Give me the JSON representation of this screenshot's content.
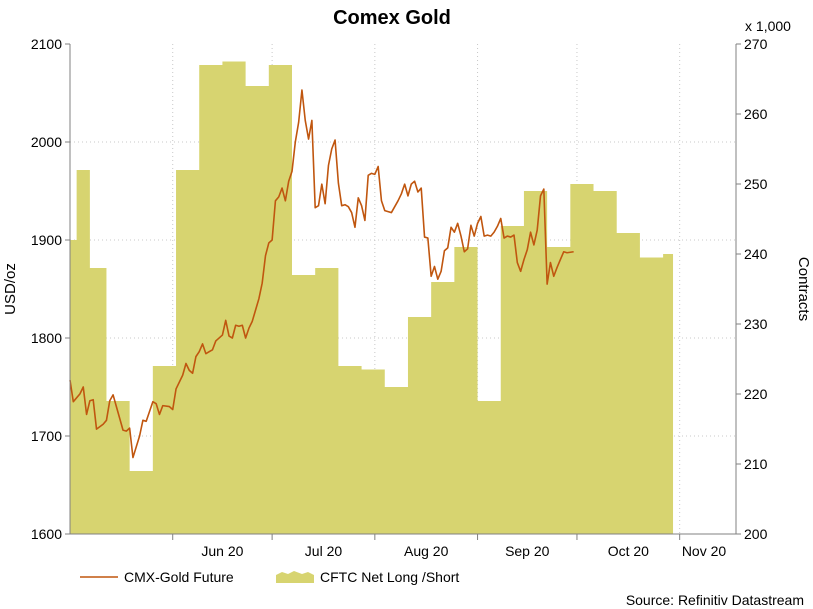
{
  "chart_data": {
    "type": "area",
    "title": "Comex Gold",
    "left_axis": {
      "label": "USD/oz",
      "ylim": [
        1600,
        2100
      ],
      "ticks": [
        "1600",
        "1700",
        "1800",
        "1900",
        "2000",
        "2100"
      ]
    },
    "right_axis": {
      "label": "Contracts",
      "multiplier": "x 1,000",
      "ylim": [
        200,
        270
      ],
      "ticks": [
        "200",
        "210",
        "220",
        "230",
        "240",
        "250",
        "260",
        "270"
      ]
    },
    "x_axis": {
      "range": [
        "2020-05-01",
        "2020-11-18"
      ],
      "ticks": [
        {
          "date": "2020-06-01",
          "label": "Jun 20"
        },
        {
          "date": "2020-07-01",
          "label": "Jul 20"
        },
        {
          "date": "2020-08-01",
          "label": "Aug 20"
        },
        {
          "date": "2020-09-01",
          "label": "Sep 20"
        },
        {
          "date": "2020-10-01",
          "label": "Oct 20"
        },
        {
          "date": "2020-11-01",
          "label": "Nov 20"
        }
      ]
    },
    "grid": true,
    "legend_position": "bottom",
    "source": "Source: Refinitiv Datastream",
    "series": [
      {
        "name": "CMX-Gold Future",
        "type": "line",
        "axis": "left",
        "color": "#c0560f",
        "points": [
          [
            "2020-05-01",
            1757
          ],
          [
            "2020-05-02",
            1735
          ],
          [
            "2020-05-04",
            1743
          ],
          [
            "2020-05-05",
            1750
          ],
          [
            "2020-05-06",
            1722
          ],
          [
            "2020-05-07",
            1736
          ],
          [
            "2020-05-08",
            1737
          ],
          [
            "2020-05-09",
            1707
          ],
          [
            "2020-05-11",
            1712
          ],
          [
            "2020-05-12",
            1716
          ],
          [
            "2020-05-13",
            1736
          ],
          [
            "2020-05-14",
            1742
          ],
          [
            "2020-05-15",
            1730
          ],
          [
            "2020-05-17",
            1706
          ],
          [
            "2020-05-18",
            1705
          ],
          [
            "2020-05-19",
            1708
          ],
          [
            "2020-05-20",
            1678
          ],
          [
            "2020-05-22",
            1700
          ],
          [
            "2020-05-23",
            1716
          ],
          [
            "2020-05-24",
            1715
          ],
          [
            "2020-05-26",
            1735
          ],
          [
            "2020-05-27",
            1733
          ],
          [
            "2020-05-28",
            1722
          ],
          [
            "2020-05-29",
            1731
          ],
          [
            "2020-05-31",
            1730
          ],
          [
            "2020-06-01",
            1727
          ],
          [
            "2020-06-02",
            1748
          ],
          [
            "2020-06-04",
            1762
          ],
          [
            "2020-06-05",
            1774
          ],
          [
            "2020-06-06",
            1767
          ],
          [
            "2020-06-07",
            1764
          ],
          [
            "2020-06-08",
            1781
          ],
          [
            "2020-06-09",
            1786
          ],
          [
            "2020-06-10",
            1794
          ],
          [
            "2020-06-11",
            1784
          ],
          [
            "2020-06-12",
            1786
          ],
          [
            "2020-06-13",
            1788
          ],
          [
            "2020-06-14",
            1797
          ],
          [
            "2020-06-16",
            1803
          ],
          [
            "2020-06-17",
            1818
          ],
          [
            "2020-06-18",
            1802
          ],
          [
            "2020-06-19",
            1800
          ],
          [
            "2020-06-20",
            1813
          ],
          [
            "2020-06-21",
            1812
          ],
          [
            "2020-06-22",
            1813
          ],
          [
            "2020-06-23",
            1800
          ],
          [
            "2020-06-24",
            1810
          ],
          [
            "2020-06-25",
            1817
          ],
          [
            "2020-06-27",
            1840
          ],
          [
            "2020-06-28",
            1856
          ],
          [
            "2020-06-29",
            1884
          ],
          [
            "2020-06-30",
            1897
          ],
          [
            "2020-07-01",
            1900
          ],
          [
            "2020-07-02",
            1940
          ],
          [
            "2020-07-03",
            1944
          ],
          [
            "2020-07-04",
            1953
          ],
          [
            "2020-07-05",
            1940
          ],
          [
            "2020-07-06",
            1960
          ],
          [
            "2020-07-07",
            1970
          ],
          [
            "2020-07-08",
            2000
          ],
          [
            "2020-07-09",
            2020
          ],
          [
            "2020-07-10",
            2053
          ],
          [
            "2020-07-11",
            2022
          ],
          [
            "2020-07-12",
            2003
          ],
          [
            "2020-07-13",
            2022
          ],
          [
            "2020-07-14",
            1933
          ],
          [
            "2020-07-15",
            1935
          ],
          [
            "2020-07-16",
            1957
          ],
          [
            "2020-07-17",
            1937
          ],
          [
            "2020-07-18",
            1976
          ],
          [
            "2020-07-19",
            1993
          ],
          [
            "2020-07-20",
            2002
          ],
          [
            "2020-07-21",
            1958
          ],
          [
            "2020-07-22",
            1935
          ],
          [
            "2020-07-23",
            1936
          ],
          [
            "2020-07-24",
            1934
          ],
          [
            "2020-07-25",
            1928
          ],
          [
            "2020-07-26",
            1913
          ],
          [
            "2020-07-27",
            1943
          ],
          [
            "2020-07-28",
            1935
          ],
          [
            "2020-07-29",
            1920
          ],
          [
            "2020-07-30",
            1966
          ],
          [
            "2020-07-31",
            1968
          ],
          [
            "2020-08-01",
            1967
          ],
          [
            "2020-08-02",
            1975
          ],
          [
            "2020-08-03",
            1940
          ],
          [
            "2020-08-04",
            1930
          ],
          [
            "2020-08-05",
            1929
          ],
          [
            "2020-08-06",
            1928
          ],
          [
            "2020-08-08",
            1940
          ],
          [
            "2020-08-09",
            1947
          ],
          [
            "2020-08-10",
            1957
          ],
          [
            "2020-08-11",
            1945
          ],
          [
            "2020-08-12",
            1957
          ],
          [
            "2020-08-13",
            1960
          ],
          [
            "2020-08-14",
            1949
          ],
          [
            "2020-08-15",
            1953
          ],
          [
            "2020-08-16",
            1903
          ],
          [
            "2020-08-17",
            1902
          ],
          [
            "2020-08-18",
            1863
          ],
          [
            "2020-08-19",
            1873
          ],
          [
            "2020-08-20",
            1860
          ],
          [
            "2020-08-21",
            1868
          ],
          [
            "2020-08-22",
            1889
          ],
          [
            "2020-08-23",
            1892
          ],
          [
            "2020-08-24",
            1913
          ],
          [
            "2020-08-25",
            1908
          ],
          [
            "2020-08-26",
            1917
          ],
          [
            "2020-08-27",
            1904
          ],
          [
            "2020-08-28",
            1888
          ],
          [
            "2020-08-29",
            1891
          ],
          [
            "2020-08-30",
            1915
          ],
          [
            "2020-08-31",
            1904
          ],
          [
            "2020-09-01",
            1917
          ],
          [
            "2020-09-02",
            1924
          ],
          [
            "2020-09-03",
            1904
          ],
          [
            "2020-09-04",
            1905
          ],
          [
            "2020-09-05",
            1904
          ],
          [
            "2020-09-06",
            1908
          ],
          [
            "2020-09-07",
            1914
          ],
          [
            "2020-09-08",
            1922
          ],
          [
            "2020-09-09",
            1902
          ],
          [
            "2020-09-10",
            1904
          ],
          [
            "2020-09-11",
            1903
          ],
          [
            "2020-09-12",
            1905
          ],
          [
            "2020-09-13",
            1877
          ],
          [
            "2020-09-14",
            1868
          ],
          [
            "2020-09-15",
            1880
          ],
          [
            "2020-09-16",
            1890
          ],
          [
            "2020-09-17",
            1908
          ],
          [
            "2020-09-18",
            1895
          ],
          [
            "2020-09-19",
            1910
          ],
          [
            "2020-09-20",
            1945
          ],
          [
            "2020-09-21",
            1952
          ],
          [
            "2020-09-22",
            1855
          ],
          [
            "2020-09-23",
            1877
          ],
          [
            "2020-09-24",
            1863
          ],
          [
            "2020-09-25",
            1872
          ],
          [
            "2020-09-26",
            1880
          ],
          [
            "2020-09-27",
            1888
          ],
          [
            "2020-09-28",
            1887
          ],
          [
            "2020-09-30",
            1888
          ]
        ]
      },
      {
        "name": "CFTC Net Long /Short",
        "type": "area",
        "axis": "right",
        "color": "#d7d470",
        "points": [
          [
            "2020-05-01",
            242
          ],
          [
            "2020-05-03",
            242
          ],
          [
            "2020-05-03",
            252
          ],
          [
            "2020-05-07",
            252
          ],
          [
            "2020-05-07",
            238
          ],
          [
            "2020-05-12",
            238
          ],
          [
            "2020-05-12",
            219
          ],
          [
            "2020-05-19",
            219
          ],
          [
            "2020-05-19",
            209
          ],
          [
            "2020-05-26",
            209
          ],
          [
            "2020-05-26",
            224
          ],
          [
            "2020-06-02",
            224
          ],
          [
            "2020-06-02",
            252
          ],
          [
            "2020-06-09",
            252
          ],
          [
            "2020-06-09",
            267
          ],
          [
            "2020-06-16",
            267
          ],
          [
            "2020-06-16",
            267.5
          ],
          [
            "2020-06-23",
            267.5
          ],
          [
            "2020-06-23",
            264
          ],
          [
            "2020-06-30",
            264
          ],
          [
            "2020-06-30",
            267
          ],
          [
            "2020-07-07",
            267
          ],
          [
            "2020-07-07",
            237
          ],
          [
            "2020-07-14",
            237
          ],
          [
            "2020-07-14",
            238
          ],
          [
            "2020-07-21",
            238
          ],
          [
            "2020-07-21",
            224
          ],
          [
            "2020-07-28",
            224
          ],
          [
            "2020-07-28",
            223.5
          ],
          [
            "2020-08-04",
            223.5
          ],
          [
            "2020-08-04",
            221
          ],
          [
            "2020-08-11",
            221
          ],
          [
            "2020-08-11",
            231
          ],
          [
            "2020-08-18",
            231
          ],
          [
            "2020-08-18",
            236
          ],
          [
            "2020-08-25",
            236
          ],
          [
            "2020-08-25",
            241
          ],
          [
            "2020-09-01",
            241
          ],
          [
            "2020-09-01",
            219
          ],
          [
            "2020-09-08",
            219
          ],
          [
            "2020-09-08",
            244
          ],
          [
            "2020-09-15",
            244
          ],
          [
            "2020-09-15",
            249
          ],
          [
            "2020-09-22",
            249
          ],
          [
            "2020-09-22",
            241
          ],
          [
            "2020-09-29",
            241
          ],
          [
            "2020-09-29",
            250
          ],
          [
            "2020-10-06",
            250
          ],
          [
            "2020-10-06",
            249
          ],
          [
            "2020-10-13",
            249
          ],
          [
            "2020-10-13",
            243
          ],
          [
            "2020-10-20",
            243
          ],
          [
            "2020-10-20",
            239.5
          ],
          [
            "2020-10-27",
            239.5
          ],
          [
            "2020-10-27",
            240
          ],
          [
            "2020-10-30",
            240
          ]
        ]
      }
    ]
  }
}
